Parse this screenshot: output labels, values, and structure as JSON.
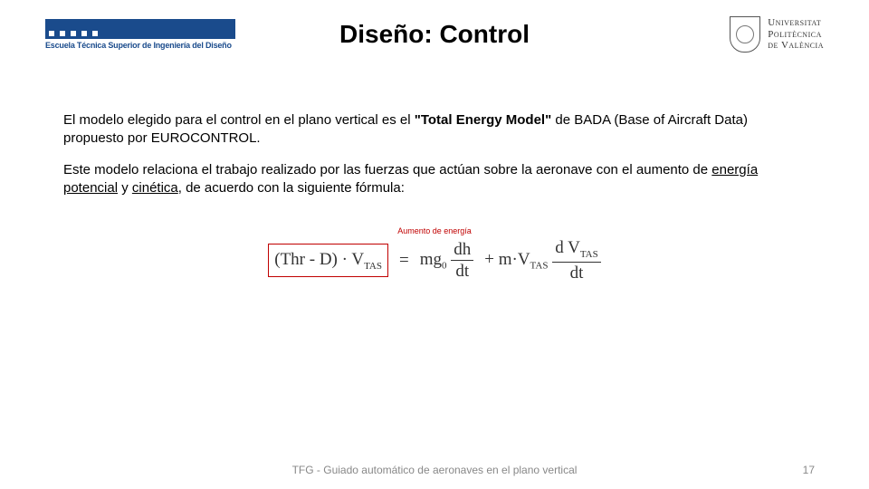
{
  "header": {
    "title": "Diseño: Control",
    "logo_left_text": "Escuela Técnica Superior de Ingeniería del Diseño",
    "logo_right_line1": "Universitat",
    "logo_right_line2": "Politècnica",
    "logo_right_line3": "de València"
  },
  "body": {
    "para1_a": "El modelo elegido para el control en el plano vertical es el ",
    "para1_bold": "\"Total Energy Model\"",
    "para1_b": " de BADA (Base of Aircraft Data) propuesto por EUROCONTROL.",
    "para2_a": "Este modelo relaciona el trabajo realizado por las fuerzas que actúan sobre la aeronave con el aumento de ",
    "para2_u1": "energía potencial",
    "para2_mid": " y ",
    "para2_u2": "cinética",
    "para2_b": ", de acuerdo con la siguiente fórmula:"
  },
  "formula": {
    "label": "Aumento de energía",
    "lhs_text": "(Thr - D) · V",
    "lhs_sub": "TAS",
    "eq": "=",
    "rhs1_coef": "mg",
    "rhs1_sub": "0",
    "rhs1_num": "dh",
    "rhs1_den": "dt",
    "plus": "+ m·V",
    "rhs2_sub": "TAS",
    "rhs2_num_a": "d V",
    "rhs2_num_sub": "TAS",
    "rhs2_den": "dt",
    "box_color": "#c00000",
    "text_color": "#333333"
  },
  "footer": {
    "center": "TFG - Guiado automático de aeronaves en el plano vertical",
    "page": "17"
  }
}
